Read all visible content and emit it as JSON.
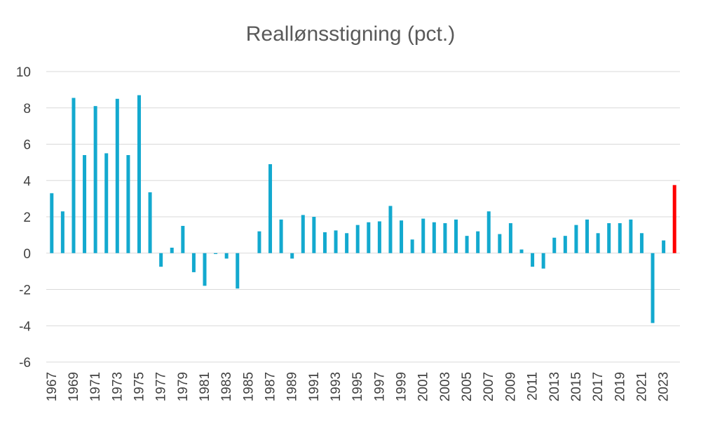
{
  "chart_data": {
    "type": "bar",
    "title": "Reallønsstigning (pct.)",
    "xlabel": "",
    "ylabel": "",
    "ylim": [
      -6,
      10
    ],
    "yticks": [
      10,
      8,
      6,
      4,
      2,
      0,
      -2,
      -4,
      -6
    ],
    "grid": true,
    "legend": "none",
    "colors": {
      "default": "#13A9CF",
      "highlight": "#FF0000"
    },
    "highlight_category": "2024",
    "categories": [
      "1967",
      "1968",
      "1969",
      "1970",
      "1971",
      "1972",
      "1973",
      "1974",
      "1975",
      "1976",
      "1977",
      "1978",
      "1979",
      "1980",
      "1981",
      "1982",
      "1983",
      "1984",
      "1985",
      "1986",
      "1987",
      "1988",
      "1989",
      "1990",
      "1991",
      "1992",
      "1993",
      "1994",
      "1995",
      "1996",
      "1997",
      "1998",
      "1999",
      "2000",
      "2001",
      "2002",
      "2003",
      "2004",
      "2005",
      "2006",
      "2007",
      "2008",
      "2009",
      "2010",
      "2011",
      "2012",
      "2013",
      "2014",
      "2015",
      "2016",
      "2017",
      "2018",
      "2019",
      "2020",
      "2021",
      "2022",
      "2023",
      "2024"
    ],
    "tick_labels": [
      "1967",
      "1969",
      "1971",
      "1973",
      "1975",
      "1977",
      "1979",
      "1981",
      "1983",
      "1985",
      "1987",
      "1989",
      "1991",
      "1993",
      "1995",
      "1997",
      "1999",
      "2001",
      "2003",
      "2005",
      "2007",
      "2009",
      "2011",
      "2013",
      "2015",
      "2017",
      "2019",
      "2021",
      "2023"
    ],
    "values": [
      3.3,
      2.3,
      8.55,
      5.4,
      8.1,
      5.5,
      8.5,
      5.4,
      8.7,
      3.35,
      -0.75,
      0.3,
      1.5,
      -1.05,
      -1.8,
      -0.05,
      -0.3,
      -1.95,
      0.0,
      1.2,
      4.9,
      1.85,
      -0.3,
      2.1,
      2.0,
      1.15,
      1.25,
      1.1,
      1.55,
      1.7,
      1.75,
      2.6,
      1.8,
      0.75,
      1.9,
      1.7,
      1.65,
      1.85,
      0.95,
      1.2,
      2.3,
      1.05,
      1.65,
      0.2,
      -0.75,
      -0.85,
      0.85,
      0.95,
      1.55,
      1.85,
      1.1,
      1.65,
      1.65,
      1.85,
      1.1,
      -3.85,
      0.7,
      3.75
    ]
  }
}
